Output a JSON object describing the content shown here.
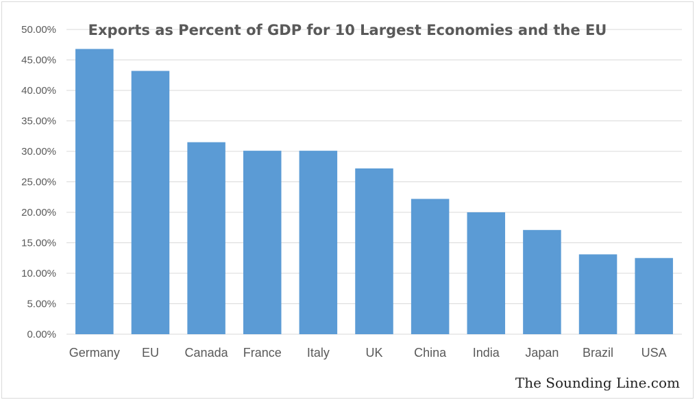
{
  "chart_data": {
    "type": "bar",
    "title": "Exports as Percent of GDP for 10 Largest Economies and the EU",
    "xlabel": "",
    "ylabel": "",
    "categories": [
      "Germany",
      "EU",
      "Canada",
      "France",
      "Italy",
      "UK",
      "China",
      "India",
      "Japan",
      "Brazil",
      "USA"
    ],
    "values": [
      46.8,
      43.2,
      31.5,
      30.1,
      30.1,
      27.2,
      22.2,
      20.0,
      17.1,
      13.1,
      12.5
    ],
    "ylim": [
      0,
      50
    ],
    "yticks": [
      "0.00%",
      "5.00%",
      "10.00%",
      "15.00%",
      "20.00%",
      "25.00%",
      "30.00%",
      "35.00%",
      "40.00%",
      "45.00%",
      "50.00%"
    ],
    "grid": true,
    "legend": "none",
    "bar_color": "#5b9bd5",
    "grid_color": "#d9d9d9",
    "text_color": "#595959"
  },
  "watermark": "The Sounding Line.com"
}
